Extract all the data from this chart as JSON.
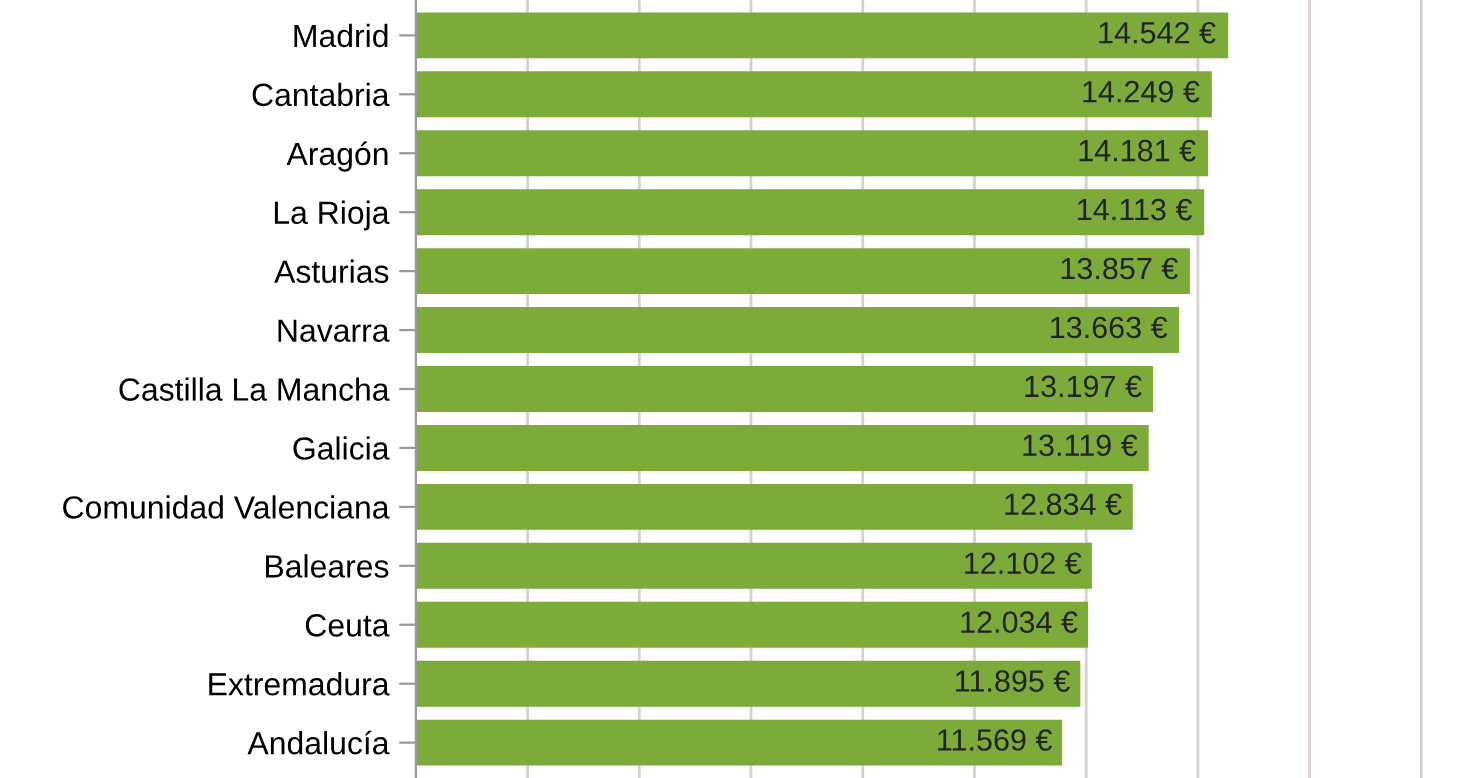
{
  "chart_data": {
    "type": "bar",
    "orientation": "horizontal",
    "categories": [
      "Madrid",
      "Cantabria",
      "Aragón",
      "La Rioja",
      "Asturias",
      "Navarra",
      "Castilla La Mancha",
      "Galicia",
      "Comunidad Valenciana",
      "Baleares",
      "Ceuta",
      "Extremadura",
      "Andalucía"
    ],
    "values": [
      14542,
      14249,
      14181,
      14113,
      13857,
      13663,
      13197,
      13119,
      12834,
      12102,
      12034,
      11895,
      11569
    ],
    "value_labels": [
      "14.542 €",
      "14.249 €",
      "14.181 €",
      "14.113 €",
      "13.857 €",
      "13.663 €",
      "13.197 €",
      "13.119 €",
      "12.834 €",
      "12.102 €",
      "12.034 €",
      "11.895 €",
      "11.569 €"
    ],
    "color": "#7dab3a",
    "xticks": [
      {
        "value": 2000,
        "label": null
      },
      {
        "value": 4000,
        "label": null
      },
      {
        "value": 6000,
        "label": null
      },
      {
        "value": 8000,
        "label": null
      },
      {
        "value": 10000,
        "label": null
      },
      {
        "value": 12000,
        "label": null
      },
      {
        "value": 14000,
        "label": null
      },
      {
        "value": 16000,
        "label": null
      },
      {
        "value": 18000,
        "label": null
      }
    ],
    "grid": "x",
    "legend": false
  }
}
